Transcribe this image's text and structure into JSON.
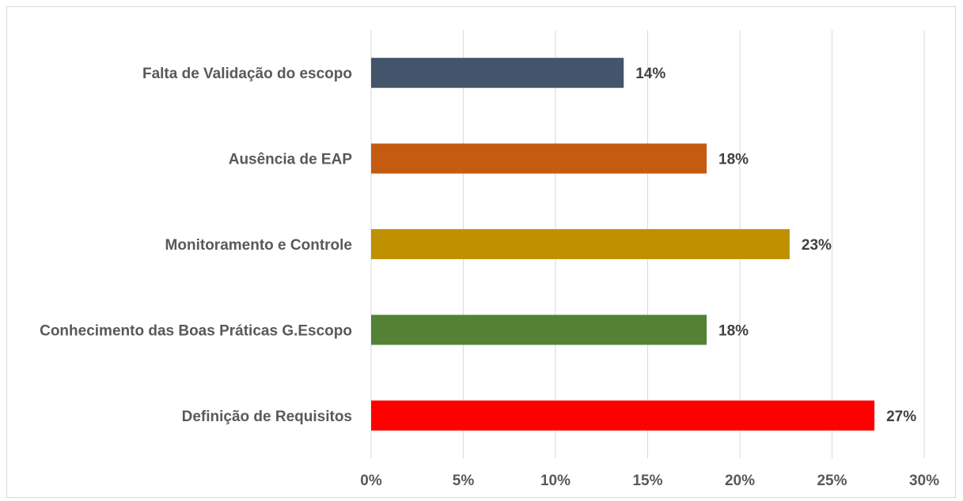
{
  "chart_data": {
    "type": "bar",
    "orientation": "horizontal",
    "categories": [
      "Falta de Validação do escopo",
      "Ausência de EAP",
      "Monitoramento e Controle",
      "Conhecimento das Boas Práticas G.Escopo",
      "Definição de Requisitos"
    ],
    "values": [
      0.137,
      0.182,
      0.227,
      0.182,
      0.273
    ],
    "data_labels": [
      "14%",
      "18%",
      "23%",
      "18%",
      "27%"
    ],
    "colors": [
      "#44546a",
      "#c55a11",
      "#bf9000",
      "#548235",
      "#ff0000"
    ],
    "xlim": [
      0,
      0.3
    ],
    "x_ticks": [
      "0%",
      "5%",
      "10%",
      "15%",
      "20%",
      "25%",
      "30%"
    ],
    "grid": true,
    "title": "",
    "xlabel": "",
    "ylabel": ""
  }
}
